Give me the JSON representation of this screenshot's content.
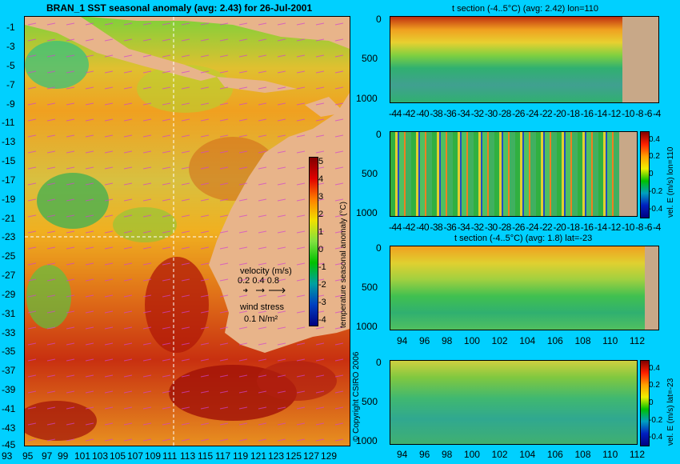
{
  "main_map": {
    "title": "BRAN_1  SST seasonal anomaly  (avg: 2.43)  for 26-Jul-2001",
    "y_ticks": [
      "-1",
      "-3",
      "-5",
      "-7",
      "-9",
      "-11",
      "-13",
      "-15",
      "-17",
      "-19",
      "-21",
      "-23",
      "-25",
      "-27",
      "-29",
      "-31",
      "-33",
      "-35",
      "-37",
      "-39",
      "-41",
      "-43",
      "-45"
    ],
    "x_ticks": [
      "93",
      "95",
      "97",
      "99",
      "101",
      "103",
      "105",
      "107",
      "109",
      "111",
      "113",
      "115",
      "117",
      "119",
      "121",
      "123",
      "125",
      "127",
      "129"
    ],
    "colorbar": {
      "label": "temperature seasonal anomaly (°C)",
      "ticks": [
        "5",
        "4",
        "3",
        "2",
        "1",
        "0",
        "-1",
        "-2",
        "-3",
        "-4"
      ]
    },
    "legend": {
      "velocity_label": "velocity (m/s)",
      "velocity_values": "0.2 0.4 0.8",
      "wind_label": "wind stress",
      "wind_value": "0.1 N/m²"
    },
    "copyright": "© Copyright CSIRO 2006"
  },
  "panels": [
    {
      "title": "t section (-4..5°C) (avg: 2.42) lon=110",
      "y_ticks": [
        "0",
        "500",
        "1000"
      ],
      "x_ticks": [
        "-44",
        "-42",
        "-40",
        "-38",
        "-36",
        "-34",
        "-32",
        "-30",
        "-28",
        "-26",
        "-24",
        "-22",
        "-20",
        "-18",
        "-16",
        "-14",
        "-12",
        "-10",
        "-8",
        "-6",
        "-4"
      ]
    },
    {
      "title": "",
      "y_ticks": [
        "0",
        "500",
        "1000"
      ],
      "x_ticks": [
        "-44",
        "-42",
        "-40",
        "-38",
        "-36",
        "-34",
        "-32",
        "-30",
        "-28",
        "-26",
        "-24",
        "-22",
        "-20",
        "-18",
        "-16",
        "-14",
        "-12",
        "-10",
        "-8",
        "-6",
        "-4"
      ],
      "colorbar_label": "vel. E (m/s) lon=110",
      "colorbar_ticks": [
        "0.4",
        "0.2",
        "0",
        "-0.2",
        "-0.4"
      ]
    },
    {
      "title": "t section (-4..5°C) (avg: 1.8) lat=-23",
      "y_ticks": [
        "0",
        "500",
        "1000"
      ],
      "x_ticks": [
        "94",
        "96",
        "98",
        "100",
        "102",
        "104",
        "106",
        "108",
        "110",
        "112"
      ]
    },
    {
      "title": "",
      "y_ticks": [
        "0",
        "500",
        "1000"
      ],
      "x_ticks": [
        "94",
        "96",
        "98",
        "100",
        "102",
        "104",
        "106",
        "108",
        "110",
        "112"
      ],
      "colorbar_label": "vel. E (m/s) lat=-23",
      "colorbar_ticks": [
        "0.4",
        "0.2",
        "0",
        "-0.2",
        "-0.4"
      ]
    }
  ]
}
